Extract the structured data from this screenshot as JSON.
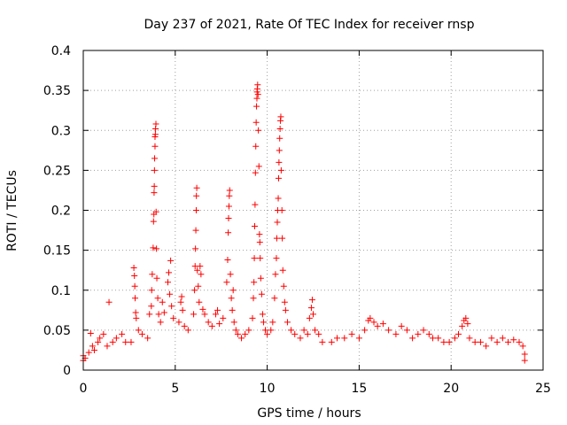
{
  "chart_data": {
    "type": "scatter",
    "title": "Day 237 of 2021, Rate Of TEC Index for receiver rnsp",
    "xlabel": "GPS time / hours",
    "ylabel": "ROTI / TECUs",
    "xlim": [
      0,
      25
    ],
    "ylim": [
      0,
      0.4
    ],
    "x_ticks": [
      "0",
      "5",
      "10",
      "15",
      "20",
      "25"
    ],
    "y_ticks": [
      "0",
      "0.05",
      "0.1",
      "0.15",
      "0.2",
      "0.25",
      "0.3",
      "0.35",
      "0.4"
    ],
    "grid": true,
    "legend": "none",
    "marker": "+",
    "color": "#ff0000",
    "series": [
      {
        "points": [
          [
            0.0,
            0.018
          ],
          [
            0.0,
            0.012
          ],
          [
            0.1,
            0.015
          ],
          [
            0.3,
            0.022
          ],
          [
            0.4,
            0.046
          ],
          [
            0.5,
            0.03
          ],
          [
            0.6,
            0.025
          ],
          [
            0.8,
            0.035
          ],
          [
            0.9,
            0.04
          ],
          [
            1.1,
            0.045
          ],
          [
            1.3,
            0.03
          ],
          [
            1.4,
            0.085
          ],
          [
            1.6,
            0.035
          ],
          [
            1.8,
            0.04
          ],
          [
            2.1,
            0.045
          ],
          [
            2.3,
            0.035
          ],
          [
            2.6,
            0.035
          ],
          [
            2.75,
            0.128
          ],
          [
            2.78,
            0.118
          ],
          [
            2.8,
            0.105
          ],
          [
            2.82,
            0.09
          ],
          [
            2.85,
            0.072
          ],
          [
            2.88,
            0.065
          ],
          [
            3.0,
            0.05
          ],
          [
            3.2,
            0.045
          ],
          [
            3.5,
            0.04
          ],
          [
            3.6,
            0.07
          ],
          [
            3.7,
            0.08
          ],
          [
            3.72,
            0.1
          ],
          [
            3.75,
            0.12
          ],
          [
            3.8,
            0.153
          ],
          [
            3.82,
            0.186
          ],
          [
            3.84,
            0.195
          ],
          [
            3.85,
            0.222
          ],
          [
            3.86,
            0.23
          ],
          [
            3.87,
            0.25
          ],
          [
            3.88,
            0.265
          ],
          [
            3.9,
            0.28
          ],
          [
            3.9,
            0.292
          ],
          [
            3.92,
            0.295
          ],
          [
            3.93,
            0.302
          ],
          [
            3.95,
            0.308
          ],
          [
            3.96,
            0.198
          ],
          [
            3.98,
            0.152
          ],
          [
            4.0,
            0.115
          ],
          [
            4.05,
            0.09
          ],
          [
            4.1,
            0.07
          ],
          [
            4.2,
            0.06
          ],
          [
            4.3,
            0.085
          ],
          [
            4.4,
            0.072
          ],
          [
            4.6,
            0.11
          ],
          [
            4.65,
            0.122
          ],
          [
            4.7,
            0.095
          ],
          [
            4.75,
            0.137
          ],
          [
            4.8,
            0.08
          ],
          [
            4.9,
            0.065
          ],
          [
            5.2,
            0.06
          ],
          [
            5.3,
            0.085
          ],
          [
            5.35,
            0.092
          ],
          [
            5.4,
            0.075
          ],
          [
            5.5,
            0.055
          ],
          [
            5.7,
            0.05
          ],
          [
            6.0,
            0.07
          ],
          [
            6.05,
            0.1
          ],
          [
            6.08,
            0.13
          ],
          [
            6.1,
            0.152
          ],
          [
            6.12,
            0.175
          ],
          [
            6.14,
            0.2
          ],
          [
            6.15,
            0.218
          ],
          [
            6.17,
            0.228
          ],
          [
            6.2,
            0.125
          ],
          [
            6.25,
            0.105
          ],
          [
            6.3,
            0.085
          ],
          [
            6.35,
            0.13
          ],
          [
            6.4,
            0.12
          ],
          [
            6.5,
            0.076
          ],
          [
            6.6,
            0.07
          ],
          [
            6.8,
            0.06
          ],
          [
            7.0,
            0.055
          ],
          [
            7.2,
            0.07
          ],
          [
            7.3,
            0.075
          ],
          [
            7.4,
            0.058
          ],
          [
            7.6,
            0.065
          ],
          [
            7.8,
            0.11
          ],
          [
            7.85,
            0.138
          ],
          [
            7.88,
            0.172
          ],
          [
            7.9,
            0.19
          ],
          [
            7.92,
            0.205
          ],
          [
            7.94,
            0.218
          ],
          [
            7.96,
            0.225
          ],
          [
            8.0,
            0.12
          ],
          [
            8.05,
            0.09
          ],
          [
            8.1,
            0.075
          ],
          [
            8.15,
            0.1
          ],
          [
            8.2,
            0.06
          ],
          [
            8.3,
            0.05
          ],
          [
            8.4,
            0.045
          ],
          [
            8.6,
            0.04
          ],
          [
            8.8,
            0.045
          ],
          [
            9.0,
            0.05
          ],
          [
            9.2,
            0.065
          ],
          [
            9.25,
            0.09
          ],
          [
            9.28,
            0.11
          ],
          [
            9.3,
            0.14
          ],
          [
            9.32,
            0.18
          ],
          [
            9.34,
            0.207
          ],
          [
            9.36,
            0.247
          ],
          [
            9.38,
            0.28
          ],
          [
            9.4,
            0.31
          ],
          [
            9.42,
            0.33
          ],
          [
            9.44,
            0.34
          ],
          [
            9.45,
            0.348
          ],
          [
            9.46,
            0.352
          ],
          [
            9.48,
            0.357
          ],
          [
            9.5,
            0.345
          ],
          [
            9.52,
            0.3
          ],
          [
            9.55,
            0.255
          ],
          [
            9.58,
            0.17
          ],
          [
            9.6,
            0.16
          ],
          [
            9.62,
            0.14
          ],
          [
            9.65,
            0.115
          ],
          [
            9.7,
            0.095
          ],
          [
            9.75,
            0.07
          ],
          [
            9.8,
            0.06
          ],
          [
            9.9,
            0.05
          ],
          [
            10.0,
            0.045
          ],
          [
            10.2,
            0.05
          ],
          [
            10.3,
            0.06
          ],
          [
            10.4,
            0.09
          ],
          [
            10.45,
            0.12
          ],
          [
            10.5,
            0.14
          ],
          [
            10.52,
            0.165
          ],
          [
            10.55,
            0.185
          ],
          [
            10.57,
            0.2
          ],
          [
            10.6,
            0.215
          ],
          [
            10.62,
            0.24
          ],
          [
            10.64,
            0.26
          ],
          [
            10.66,
            0.275
          ],
          [
            10.68,
            0.29
          ],
          [
            10.7,
            0.302
          ],
          [
            10.72,
            0.312
          ],
          [
            10.74,
            0.317
          ],
          [
            10.76,
            0.25
          ],
          [
            10.8,
            0.2
          ],
          [
            10.82,
            0.165
          ],
          [
            10.85,
            0.125
          ],
          [
            10.9,
            0.105
          ],
          [
            10.95,
            0.085
          ],
          [
            11.0,
            0.075
          ],
          [
            11.1,
            0.06
          ],
          [
            11.3,
            0.05
          ],
          [
            11.5,
            0.045
          ],
          [
            11.8,
            0.04
          ],
          [
            12.0,
            0.05
          ],
          [
            12.2,
            0.045
          ],
          [
            12.3,
            0.065
          ],
          [
            12.4,
            0.078
          ],
          [
            12.45,
            0.088
          ],
          [
            12.5,
            0.07
          ],
          [
            12.6,
            0.05
          ],
          [
            12.8,
            0.045
          ],
          [
            13.0,
            0.035
          ],
          [
            13.5,
            0.035
          ],
          [
            13.8,
            0.04
          ],
          [
            14.2,
            0.04
          ],
          [
            14.6,
            0.045
          ],
          [
            15.0,
            0.04
          ],
          [
            15.3,
            0.05
          ],
          [
            15.5,
            0.062
          ],
          [
            15.6,
            0.065
          ],
          [
            15.8,
            0.06
          ],
          [
            16.0,
            0.055
          ],
          [
            16.3,
            0.058
          ],
          [
            16.6,
            0.05
          ],
          [
            17.0,
            0.045
          ],
          [
            17.3,
            0.055
          ],
          [
            17.6,
            0.05
          ],
          [
            17.9,
            0.04
          ],
          [
            18.2,
            0.045
          ],
          [
            18.5,
            0.05
          ],
          [
            18.8,
            0.045
          ],
          [
            19.0,
            0.04
          ],
          [
            19.3,
            0.04
          ],
          [
            19.6,
            0.035
          ],
          [
            19.9,
            0.035
          ],
          [
            20.2,
            0.04
          ],
          [
            20.4,
            0.045
          ],
          [
            20.6,
            0.055
          ],
          [
            20.7,
            0.062
          ],
          [
            20.8,
            0.065
          ],
          [
            20.9,
            0.058
          ],
          [
            21.0,
            0.04
          ],
          [
            21.3,
            0.035
          ],
          [
            21.6,
            0.035
          ],
          [
            21.9,
            0.03
          ],
          [
            22.2,
            0.04
          ],
          [
            22.5,
            0.035
          ],
          [
            22.8,
            0.04
          ],
          [
            23.1,
            0.035
          ],
          [
            23.4,
            0.038
          ],
          [
            23.7,
            0.035
          ],
          [
            23.9,
            0.03
          ],
          [
            24.0,
            0.02
          ],
          [
            24.0,
            0.012
          ]
        ]
      }
    ]
  }
}
